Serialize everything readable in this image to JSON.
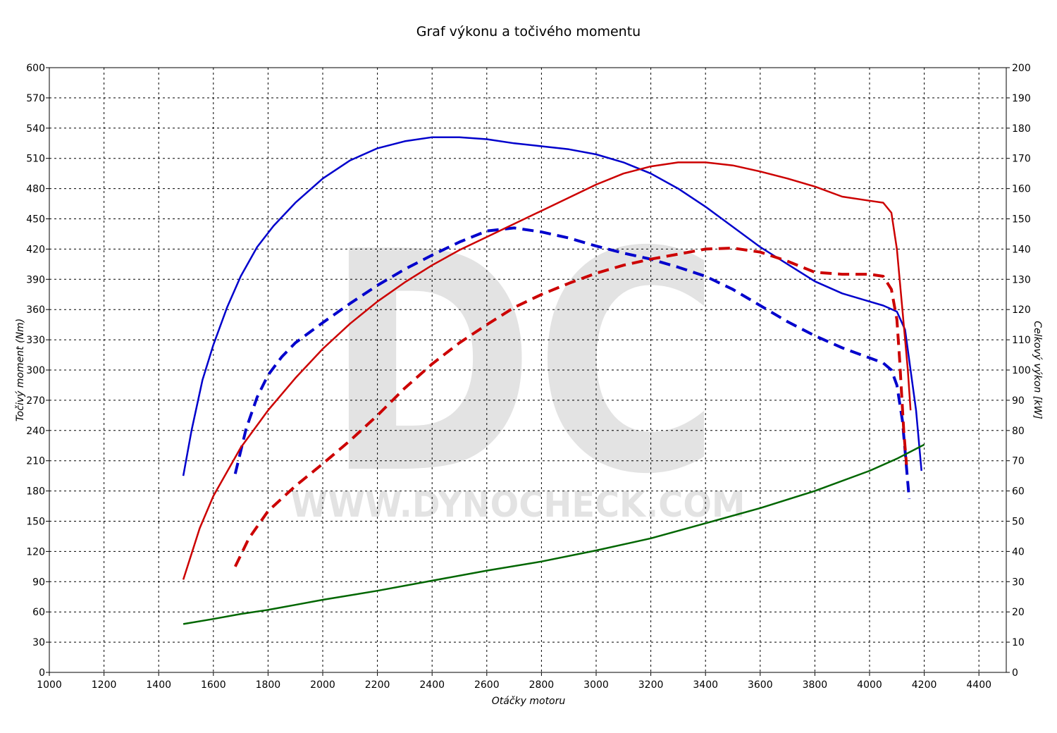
{
  "chart_data": {
    "type": "line",
    "title": "Graf výkonu a točivého momentu",
    "xlabel": "Otáčky motoru",
    "ylabel_left": "Točivý moment (Nm)",
    "ylabel_right": "Celkový výkon [kW]",
    "xlim": [
      1000,
      4500
    ],
    "ylim_left": [
      0,
      600
    ],
    "ylim_right": [
      0,
      200
    ],
    "x_ticks": [
      1000,
      1200,
      1400,
      1600,
      1800,
      2000,
      2200,
      2400,
      2600,
      2800,
      3000,
      3200,
      3400,
      3600,
      3800,
      4000,
      4200,
      4400
    ],
    "y_left_ticks": [
      0,
      30,
      60,
      90,
      120,
      150,
      180,
      210,
      240,
      270,
      300,
      330,
      360,
      390,
      420,
      450,
      480,
      510,
      540,
      570,
      600
    ],
    "y_right_ticks": [
      0,
      10,
      20,
      30,
      40,
      50,
      60,
      70,
      80,
      90,
      100,
      110,
      120,
      130,
      140,
      150,
      160,
      170,
      180,
      190,
      200
    ],
    "grid": true,
    "watermark": {
      "logo": "DC",
      "text": "WWW.DYNOCHECK.COM"
    },
    "series": [
      {
        "axis": "left",
        "style": "solid",
        "color": "#0000cc",
        "points": [
          [
            1490,
            195
          ],
          [
            1520,
            240
          ],
          [
            1560,
            290
          ],
          [
            1600,
            325
          ],
          [
            1650,
            362
          ],
          [
            1700,
            393
          ],
          [
            1760,
            422
          ],
          [
            1820,
            443
          ],
          [
            1900,
            466
          ],
          [
            2000,
            490
          ],
          [
            2100,
            508
          ],
          [
            2200,
            520
          ],
          [
            2300,
            527
          ],
          [
            2400,
            531
          ],
          [
            2500,
            531
          ],
          [
            2600,
            529
          ],
          [
            2700,
            525
          ],
          [
            2800,
            522
          ],
          [
            2900,
            519
          ],
          [
            3000,
            514
          ],
          [
            3100,
            506
          ],
          [
            3200,
            495
          ],
          [
            3300,
            480
          ],
          [
            3400,
            462
          ],
          [
            3500,
            442
          ],
          [
            3600,
            422
          ],
          [
            3700,
            405
          ],
          [
            3800,
            388
          ],
          [
            3900,
            376
          ],
          [
            4000,
            368
          ],
          [
            4050,
            364
          ],
          [
            4100,
            358
          ],
          [
            4130,
            340
          ],
          [
            4150,
            300
          ],
          [
            4170,
            260
          ],
          [
            4190,
            200
          ]
        ]
      },
      {
        "axis": "left",
        "style": "dashed",
        "color": "#0000cc",
        "points": [
          [
            1680,
            197
          ],
          [
            1720,
            242
          ],
          [
            1760,
            273
          ],
          [
            1800,
            295
          ],
          [
            1850,
            313
          ],
          [
            1900,
            327
          ],
          [
            2000,
            347
          ],
          [
            2100,
            366
          ],
          [
            2200,
            384
          ],
          [
            2300,
            400
          ],
          [
            2400,
            414
          ],
          [
            2500,
            427
          ],
          [
            2600,
            438
          ],
          [
            2700,
            441
          ],
          [
            2800,
            437
          ],
          [
            2900,
            431
          ],
          [
            3000,
            423
          ],
          [
            3100,
            416
          ],
          [
            3200,
            410
          ],
          [
            3300,
            402
          ],
          [
            3400,
            393
          ],
          [
            3500,
            380
          ],
          [
            3600,
            364
          ],
          [
            3700,
            348
          ],
          [
            3800,
            334
          ],
          [
            3900,
            322
          ],
          [
            4000,
            312
          ],
          [
            4050,
            307
          ],
          [
            4080,
            300
          ],
          [
            4100,
            285
          ],
          [
            4120,
            250
          ],
          [
            4130,
            220
          ],
          [
            4140,
            188
          ],
          [
            4145,
            172
          ]
        ]
      },
      {
        "axis": "left",
        "style": "solid",
        "color": "#cc0000",
        "points": [
          [
            1490,
            92
          ],
          [
            1550,
            143
          ],
          [
            1600,
            175
          ],
          [
            1700,
            223
          ],
          [
            1800,
            260
          ],
          [
            1900,
            292
          ],
          [
            2000,
            321
          ],
          [
            2100,
            346
          ],
          [
            2200,
            368
          ],
          [
            2300,
            387
          ],
          [
            2400,
            404
          ],
          [
            2500,
            419
          ],
          [
            2600,
            432
          ],
          [
            2700,
            445
          ],
          [
            2800,
            458
          ],
          [
            2900,
            471
          ],
          [
            3000,
            484
          ],
          [
            3100,
            495
          ],
          [
            3200,
            502
          ],
          [
            3300,
            506
          ],
          [
            3400,
            506
          ],
          [
            3500,
            503
          ],
          [
            3600,
            497
          ],
          [
            3700,
            490
          ],
          [
            3800,
            482
          ],
          [
            3900,
            472
          ],
          [
            4000,
            468
          ],
          [
            4050,
            466
          ],
          [
            4080,
            456
          ],
          [
            4100,
            420
          ],
          [
            4120,
            360
          ],
          [
            4140,
            300
          ],
          [
            4150,
            260
          ]
        ]
      },
      {
        "axis": "left",
        "style": "dashed",
        "color": "#cc0000",
        "points": [
          [
            1680,
            105
          ],
          [
            1730,
            133
          ],
          [
            1800,
            160
          ],
          [
            1900,
            185
          ],
          [
            2000,
            207
          ],
          [
            2100,
            230
          ],
          [
            2200,
            255
          ],
          [
            2300,
            282
          ],
          [
            2400,
            306
          ],
          [
            2500,
            327
          ],
          [
            2600,
            345
          ],
          [
            2700,
            362
          ],
          [
            2800,
            375
          ],
          [
            2900,
            386
          ],
          [
            3000,
            396
          ],
          [
            3100,
            404
          ],
          [
            3200,
            410
          ],
          [
            3300,
            415
          ],
          [
            3400,
            420
          ],
          [
            3500,
            421
          ],
          [
            3600,
            417
          ],
          [
            3700,
            408
          ],
          [
            3800,
            397
          ],
          [
            3900,
            395
          ],
          [
            4000,
            395
          ],
          [
            4050,
            393
          ],
          [
            4080,
            380
          ],
          [
            4100,
            350
          ],
          [
            4110,
            310
          ],
          [
            4125,
            240
          ],
          [
            4135,
            206
          ]
        ]
      },
      {
        "axis": "left",
        "style": "solid",
        "color": "#006600",
        "points": [
          [
            1490,
            48
          ],
          [
            1600,
            53
          ],
          [
            1700,
            58
          ],
          [
            1800,
            62
          ],
          [
            1900,
            67
          ],
          [
            2000,
            72
          ],
          [
            2200,
            81
          ],
          [
            2400,
            91
          ],
          [
            2600,
            101
          ],
          [
            2800,
            110
          ],
          [
            3000,
            121
          ],
          [
            3200,
            133
          ],
          [
            3400,
            148
          ],
          [
            3600,
            163
          ],
          [
            3800,
            180
          ],
          [
            4000,
            200
          ],
          [
            4100,
            212
          ],
          [
            4200,
            226
          ]
        ]
      }
    ]
  }
}
